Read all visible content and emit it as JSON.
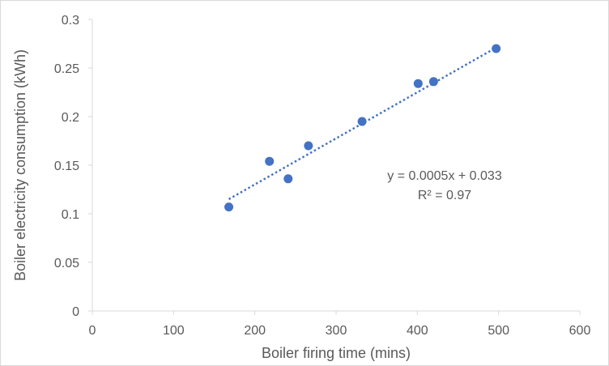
{
  "chart_data": {
    "type": "scatter",
    "xlabel": "Boiler firing time (mins)",
    "ylabel": "Boiler electricity consumption (kWh)",
    "xlim": [
      0,
      600
    ],
    "ylim": [
      0,
      0.3
    ],
    "x_ticks": [
      "0",
      "100",
      "200",
      "300",
      "400",
      "500",
      "600"
    ],
    "y_ticks": [
      "0",
      "0.05",
      "0.1",
      "0.15",
      "0.2",
      "0.25",
      "0.3"
    ],
    "grid": false,
    "series": [
      {
        "points": [
          {
            "x": 168,
            "y": 0.107
          },
          {
            "x": 218,
            "y": 0.154
          },
          {
            "x": 241,
            "y": 0.136
          },
          {
            "x": 266,
            "y": 0.17
          },
          {
            "x": 332,
            "y": 0.195
          },
          {
            "x": 401,
            "y": 0.234
          },
          {
            "x": 420,
            "y": 0.236
          },
          {
            "x": 497,
            "y": 0.27
          }
        ]
      }
    ],
    "trendline": {
      "type": "linear",
      "x_range": [
        168,
        497
      ],
      "y_range": [
        0.115,
        0.271
      ],
      "equation": "y = 0.0005x + 0.033",
      "r_squared": "R² = 0.97"
    },
    "colors": {
      "marker": "#4472c4",
      "trendline": "#4472c4",
      "axis": "#d9d9d9",
      "text": "#595959"
    }
  }
}
